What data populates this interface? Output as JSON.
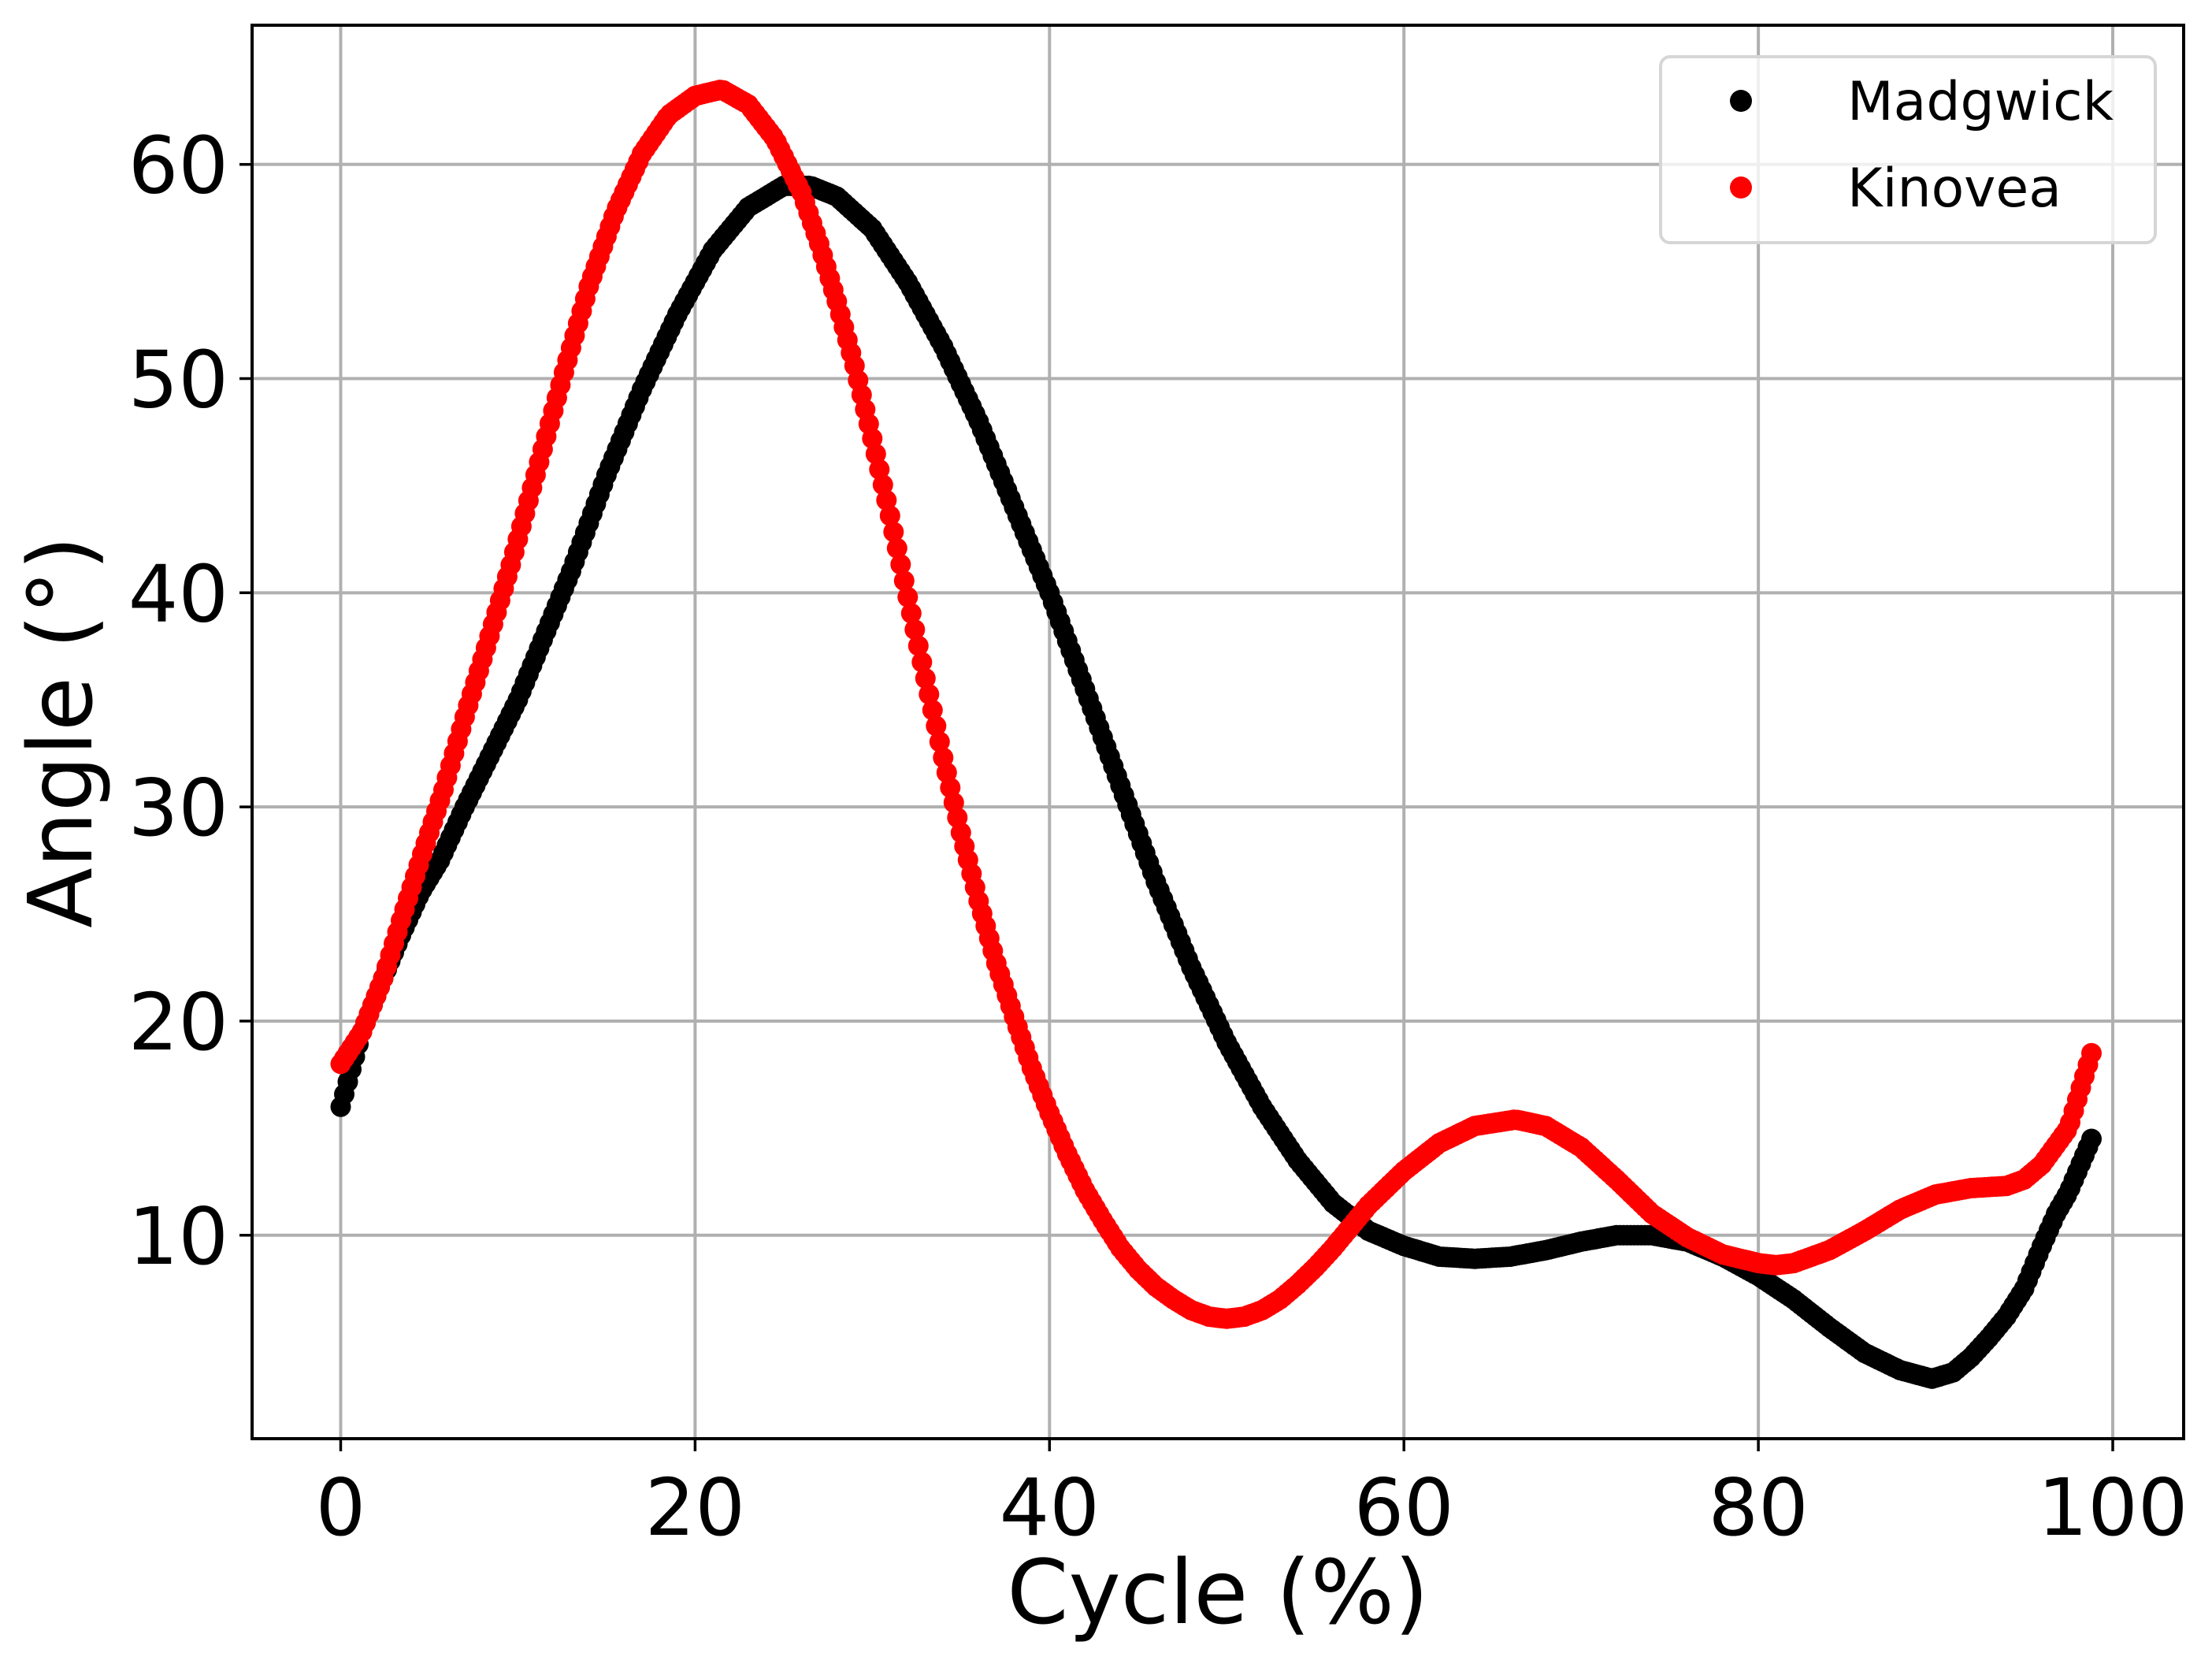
{
  "chart_data": {
    "type": "scatter",
    "title": "",
    "xlabel": "Cycle (%)",
    "ylabel": "Angle (°)",
    "xlim": [
      -5,
      104
    ],
    "ylim": [
      0.5,
      66.5
    ],
    "xticks": [
      0,
      20,
      40,
      60,
      80,
      100
    ],
    "yticks": [
      10,
      20,
      30,
      40,
      50,
      60
    ],
    "grid": true,
    "legend": {
      "position": "top-right"
    },
    "series": [
      {
        "name": "Madgwick",
        "color": "#000000",
        "keypoints": {
          "x": [
            0,
            1.2,
            2.4,
            3.4,
            4.5,
            5.6,
            7,
            8.5,
            10,
            11.5,
            13,
            15,
            17,
            19,
            21,
            23,
            25,
            26.5,
            28,
            30,
            32,
            34,
            36,
            38,
            40,
            42,
            44,
            46,
            48,
            50,
            52,
            54,
            56,
            58,
            60,
            62,
            64,
            66,
            68,
            70,
            72,
            74,
            76,
            78,
            80,
            82,
            84,
            86,
            88,
            89.8,
            91,
            92,
            93,
            94,
            95,
            96,
            96.8,
            97.5,
            98.8
          ],
          "y": [
            16,
            19.5,
            22,
            24,
            26,
            27.5,
            30,
            32.5,
            35,
            38,
            41,
            45.5,
            49.5,
            53,
            56,
            58,
            59,
            59,
            58.5,
            57,
            54.5,
            51.5,
            48,
            44,
            40,
            35.5,
            31,
            26.5,
            22.5,
            19,
            16,
            13.5,
            11.5,
            10.2,
            9.5,
            9,
            8.9,
            9,
            9.3,
            9.7,
            10,
            10,
            9.7,
            9,
            8.1,
            7,
            5.7,
            4.5,
            3.7,
            3.3,
            3.6,
            4.3,
            5.2,
            6.2,
            7.5,
            9.5,
            11,
            12,
            14.5
          ]
        }
      },
      {
        "name": "Kinovea",
        "color": "#ff0000",
        "keypoints": {
          "x": [
            0,
            1.2,
            2.4,
            3.4,
            4.6,
            5.8,
            7,
            8.3,
            9.6,
            11,
            12.5,
            14,
            15.5,
            17,
            18.5,
            20,
            21.5,
            23,
            24.5,
            26,
            27,
            28,
            29,
            30,
            31,
            32,
            33,
            34,
            35,
            36,
            37,
            38,
            39,
            40,
            41,
            42,
            43,
            44,
            45,
            46,
            47,
            48,
            49,
            50,
            51,
            52,
            53,
            54,
            55,
            56,
            57,
            58,
            60,
            62,
            64,
            66.3,
            68,
            70,
            72,
            74,
            76,
            78,
            80,
            81,
            82,
            84,
            86,
            88,
            90,
            92,
            94,
            95,
            96,
            97.5,
            98.8
          ],
          "y": [
            18,
            19.5,
            22,
            24.7,
            27.8,
            30.8,
            34.2,
            37.7,
            41.3,
            45.5,
            50,
            54.3,
            57.8,
            60.5,
            62.3,
            63.2,
            63.5,
            62.8,
            61.2,
            58.7,
            56.3,
            53.6,
            50.6,
            47.2,
            43.6,
            39.8,
            36,
            32.3,
            28.8,
            25.6,
            22.7,
            20.2,
            17.8,
            15.7,
            13.8,
            12.1,
            10.7,
            9.4,
            8.4,
            7.6,
            7,
            6.5,
            6.2,
            6.1,
            6.2,
            6.5,
            7,
            7.7,
            8.5,
            9.4,
            10.4,
            11.4,
            13,
            14.3,
            15.1,
            15.4,
            15.1,
            14.1,
            12.6,
            11,
            9.9,
            9.1,
            8.7,
            8.6,
            8.7,
            9.3,
            10.2,
            11.2,
            11.9,
            12.2,
            12.3,
            12.6,
            13.3,
            15,
            18.5
          ]
        }
      }
    ]
  }
}
